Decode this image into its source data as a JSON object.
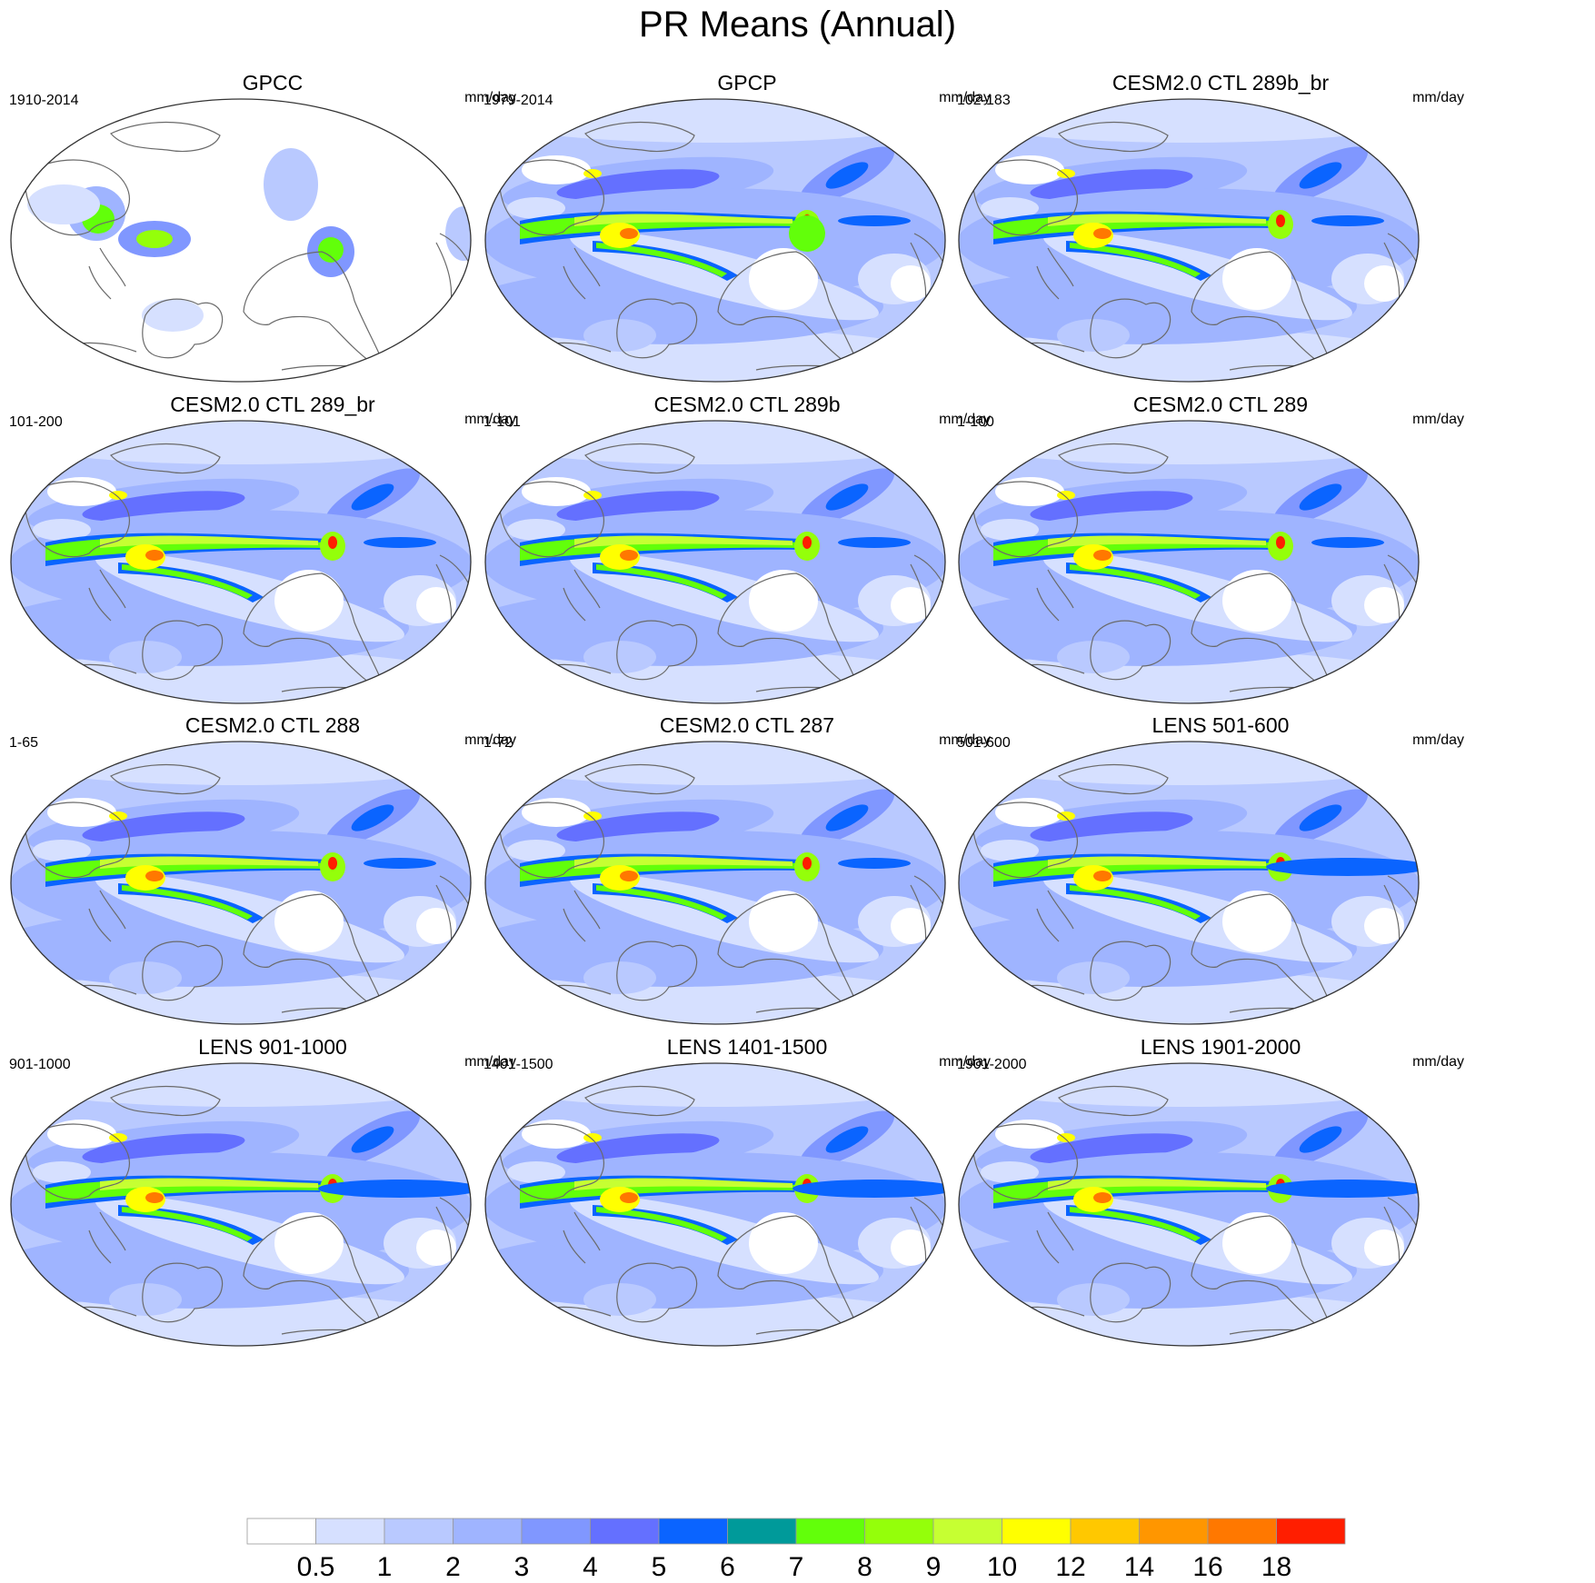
{
  "title": "PR Means (Annual)",
  "units": "mm/day",
  "panels": [
    {
      "title": "GPCC",
      "period": "1910-2014",
      "kind": "land"
    },
    {
      "title": "GPCP",
      "period": "1979-2014",
      "kind": "obs"
    },
    {
      "title": "CESM2.0 CTL 289b_br",
      "period": "102-183",
      "kind": "model"
    },
    {
      "title": "CESM2.0 CTL 289_br",
      "period": "101-200",
      "kind": "model"
    },
    {
      "title": "CESM2.0 CTL 289b",
      "period": "1-101",
      "kind": "model"
    },
    {
      "title": "CESM2.0 CTL 289",
      "period": "1-100",
      "kind": "model"
    },
    {
      "title": "CESM2.0 CTL 288",
      "period": "1-65",
      "kind": "model"
    },
    {
      "title": "CESM2.0 CTL 287",
      "period": "1-72",
      "kind": "model"
    },
    {
      "title": "LENS 501-600",
      "period": "501-600",
      "kind": "lens"
    },
    {
      "title": "LENS 901-1000",
      "period": "901-1000",
      "kind": "lens"
    },
    {
      "title": "LENS 1401-1500",
      "period": "1401-1500",
      "kind": "lens"
    },
    {
      "title": "LENS 1901-2000",
      "period": "1901-2000",
      "kind": "lens"
    }
  ],
  "colorbar": {
    "labels": [
      "0.5",
      "1",
      "2",
      "3",
      "4",
      "5",
      "6",
      "7",
      "8",
      "9",
      "10",
      "12",
      "14",
      "16",
      "18"
    ],
    "colors": [
      "#ffffff",
      "#d6e0ff",
      "#b9c9ff",
      "#9fb4ff",
      "#8097ff",
      "#6470ff",
      "#0a64ff",
      "#009a9a",
      "#62ff0a",
      "#94ff0a",
      "#c6ff32",
      "#ffff00",
      "#ffc800",
      "#ff9600",
      "#ff7800",
      "#ff1e00"
    ]
  },
  "chart_data": {
    "type": "heatmap",
    "title": "PR Means (Annual)",
    "units": "mm/day",
    "levels": [
      0.5,
      1,
      2,
      3,
      4,
      5,
      6,
      7,
      8,
      9,
      10,
      12,
      14,
      16,
      18
    ],
    "panels": [
      "GPCC",
      "GPCP",
      "CESM2.0 CTL 289b_br",
      "CESM2.0 CTL 289_br",
      "CESM2.0 CTL 289b",
      "CESM2.0 CTL 289",
      "CESM2.0 CTL 288",
      "CESM2.0 CTL 287",
      "LENS 501-600",
      "LENS 901-1000",
      "LENS 1401-1500",
      "LENS 1901-2000"
    ],
    "projection": "Robinson-like, centered on the Pacific"
  }
}
